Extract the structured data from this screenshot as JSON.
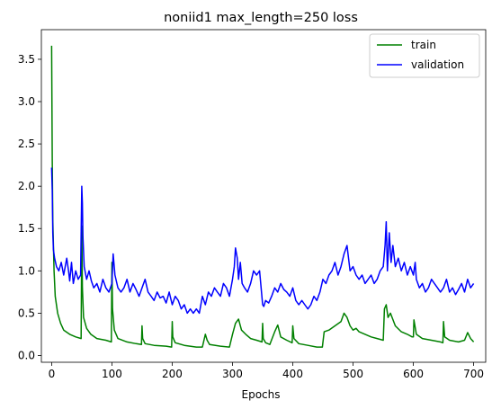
{
  "chart_data": {
    "type": "line",
    "title": "noniid1 max_length=250 loss",
    "xlabel": "Epochs",
    "ylabel": "",
    "xlim": [
      -17,
      720
    ],
    "ylim": [
      -0.08,
      3.85
    ],
    "xticks": [
      0,
      100,
      200,
      300,
      400,
      500,
      600,
      700
    ],
    "yticks": [
      0.0,
      0.5,
      1.0,
      1.5,
      2.0,
      2.5,
      3.0,
      3.5
    ],
    "ytick_labels": [
      "0.0",
      "0.5",
      "1.0",
      "1.5",
      "2.0",
      "2.5",
      "3.0",
      "3.5"
    ],
    "grid": false,
    "legend_position": "upper right",
    "series": [
      {
        "name": "train",
        "color": "#008000",
        "x": [
          0,
          1,
          2,
          4,
          6,
          10,
          15,
          20,
          30,
          40,
          49,
          50,
          51,
          53,
          58,
          65,
          75,
          90,
          99,
          100,
          101,
          104,
          110,
          125,
          140,
          149,
          150,
          151,
          155,
          170,
          190,
          199,
          200,
          201,
          205,
          220,
          240,
          250,
          255,
          258,
          262,
          280,
          295,
          300,
          305,
          310,
          315,
          322,
          330,
          340,
          349,
          350,
          351,
          355,
          362,
          370,
          375,
          380,
          390,
          399,
          400,
          402,
          410,
          425,
          440,
          449,
          452,
          460,
          470,
          480,
          485,
          490,
          495,
          500,
          505,
          510,
          520,
          530,
          540,
          550,
          552,
          555,
          558,
          562,
          570,
          580,
          590,
          598,
          600,
          601,
          605,
          615,
          630,
          645,
          649,
          650,
          652,
          660,
          675,
          685,
          690,
          695,
          700
        ],
        "y": [
          3.66,
          2.3,
          1.6,
          1.0,
          0.7,
          0.5,
          0.38,
          0.3,
          0.25,
          0.22,
          0.2,
          1.53,
          0.8,
          0.45,
          0.32,
          0.25,
          0.2,
          0.18,
          0.16,
          1.1,
          0.55,
          0.3,
          0.2,
          0.16,
          0.14,
          0.13,
          0.35,
          0.2,
          0.14,
          0.12,
          0.11,
          0.1,
          0.4,
          0.22,
          0.15,
          0.12,
          0.1,
          0.1,
          0.25,
          0.18,
          0.13,
          0.11,
          0.1,
          0.25,
          0.38,
          0.43,
          0.3,
          0.25,
          0.2,
          0.18,
          0.16,
          0.38,
          0.2,
          0.15,
          0.13,
          0.28,
          0.36,
          0.22,
          0.18,
          0.15,
          0.35,
          0.2,
          0.14,
          0.12,
          0.1,
          0.1,
          0.28,
          0.3,
          0.35,
          0.4,
          0.5,
          0.45,
          0.35,
          0.3,
          0.32,
          0.28,
          0.25,
          0.22,
          0.2,
          0.18,
          0.55,
          0.6,
          0.45,
          0.5,
          0.35,
          0.28,
          0.25,
          0.22,
          0.22,
          0.42,
          0.25,
          0.2,
          0.18,
          0.16,
          0.15,
          0.4,
          0.22,
          0.18,
          0.16,
          0.18,
          0.27,
          0.2,
          0.16
        ]
      },
      {
        "name": "validation",
        "color": "#0000ff",
        "x": [
          0,
          1,
          2,
          3,
          5,
          8,
          12,
          16,
          20,
          25,
          28,
          30,
          33,
          36,
          40,
          44,
          48,
          50,
          51,
          52,
          54,
          58,
          62,
          66,
          70,
          75,
          80,
          85,
          90,
          95,
          100,
          102,
          105,
          110,
          115,
          120,
          125,
          130,
          135,
          140,
          145,
          150,
          155,
          160,
          165,
          170,
          175,
          180,
          185,
          190,
          195,
          200,
          205,
          210,
          215,
          220,
          225,
          230,
          235,
          240,
          245,
          250,
          255,
          260,
          265,
          270,
          275,
          280,
          285,
          290,
          295,
          300,
          303,
          305,
          308,
          310,
          313,
          316,
          320,
          325,
          330,
          335,
          340,
          345,
          350,
          352,
          355,
          360,
          365,
          370,
          375,
          380,
          385,
          390,
          395,
          400,
          405,
          410,
          415,
          420,
          425,
          430,
          435,
          440,
          445,
          450,
          455,
          460,
          465,
          470,
          475,
          480,
          485,
          490,
          495,
          500,
          505,
          510,
          515,
          520,
          525,
          530,
          535,
          540,
          545,
          550,
          553,
          555,
          557,
          560,
          563,
          566,
          570,
          575,
          580,
          585,
          590,
          595,
          600,
          603,
          605,
          610,
          615,
          620,
          625,
          630,
          635,
          640,
          645,
          650,
          655,
          660,
          665,
          670,
          675,
          680,
          685,
          690,
          695,
          700
        ],
        "y": [
          2.22,
          1.95,
          1.45,
          1.25,
          1.15,
          1.05,
          1.0,
          1.1,
          0.95,
          1.15,
          1.0,
          0.88,
          1.1,
          0.85,
          1.0,
          0.9,
          0.95,
          2.0,
          1.8,
          1.4,
          1.05,
          0.9,
          1.0,
          0.88,
          0.8,
          0.85,
          0.75,
          0.9,
          0.8,
          0.75,
          0.85,
          1.2,
          0.95,
          0.8,
          0.75,
          0.8,
          0.9,
          0.75,
          0.85,
          0.78,
          0.7,
          0.8,
          0.9,
          0.75,
          0.7,
          0.65,
          0.75,
          0.68,
          0.7,
          0.62,
          0.75,
          0.6,
          0.7,
          0.65,
          0.55,
          0.6,
          0.5,
          0.55,
          0.5,
          0.55,
          0.5,
          0.7,
          0.6,
          0.75,
          0.7,
          0.8,
          0.75,
          0.7,
          0.85,
          0.8,
          0.7,
          0.9,
          1.05,
          1.27,
          1.15,
          0.9,
          1.1,
          0.85,
          0.8,
          0.75,
          0.85,
          1.0,
          0.95,
          1.0,
          0.6,
          0.58,
          0.65,
          0.62,
          0.7,
          0.8,
          0.75,
          0.85,
          0.78,
          0.75,
          0.7,
          0.8,
          0.65,
          0.6,
          0.65,
          0.6,
          0.55,
          0.6,
          0.7,
          0.65,
          0.75,
          0.9,
          0.85,
          0.95,
          1.0,
          1.1,
          0.95,
          1.05,
          1.2,
          1.3,
          1.0,
          1.05,
          0.95,
          0.9,
          0.95,
          0.85,
          0.9,
          0.95,
          0.85,
          0.9,
          1.0,
          1.05,
          1.3,
          1.58,
          1.0,
          1.45,
          1.1,
          1.3,
          1.05,
          1.15,
          1.0,
          1.1,
          0.95,
          1.05,
          0.95,
          1.1,
          0.9,
          0.8,
          0.85,
          0.75,
          0.8,
          0.9,
          0.85,
          0.8,
          0.75,
          0.8,
          0.9,
          0.75,
          0.8,
          0.72,
          0.78,
          0.85,
          0.75,
          0.9,
          0.8,
          0.85
        ]
      }
    ]
  }
}
